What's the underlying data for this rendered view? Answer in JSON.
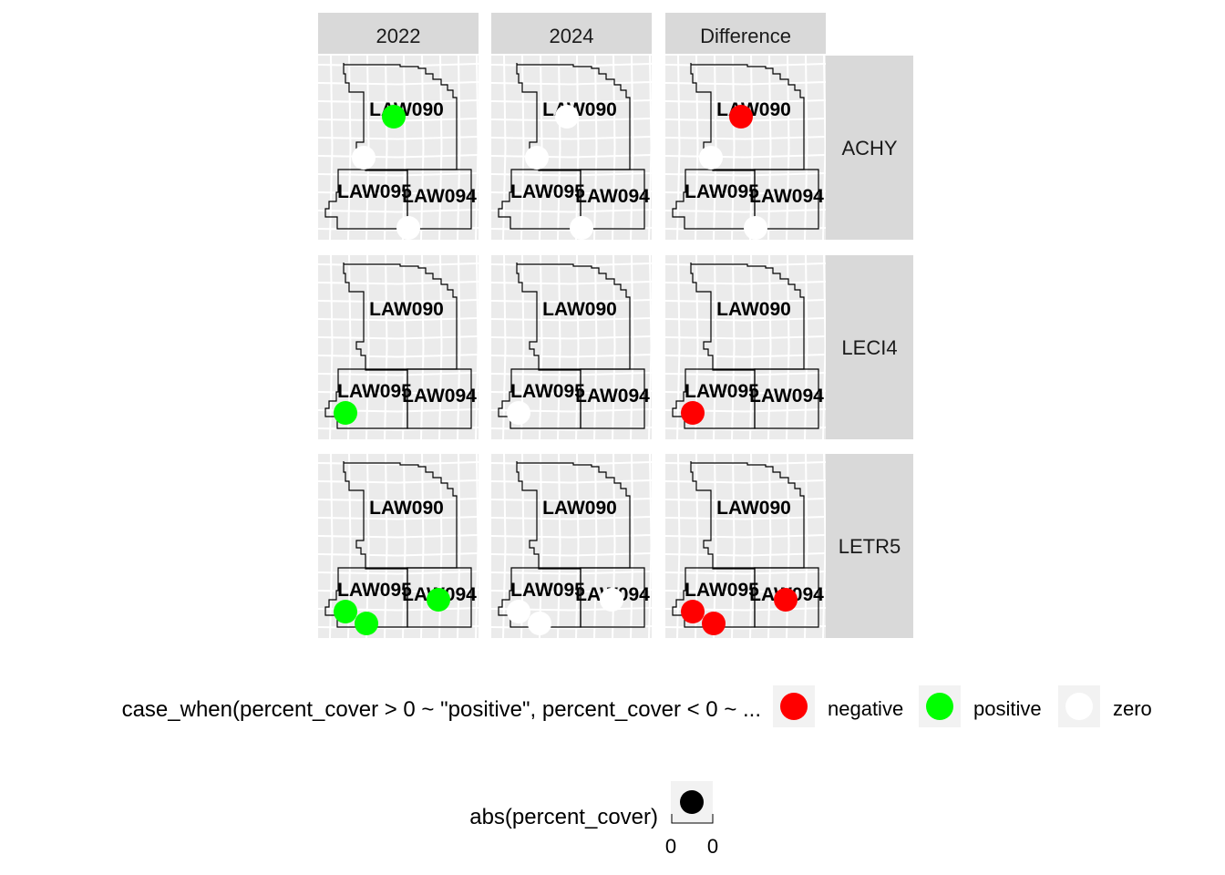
{
  "chart_data": {
    "type": "scatter",
    "subtype": "faceted map (rows = species, columns = period)",
    "columns": [
      "2022",
      "2024",
      "Difference"
    ],
    "rows": [
      "ACHY",
      "LECI4",
      "LETR5"
    ],
    "plot_labels": [
      "LAW090",
      "LAW095",
      "LAW094"
    ],
    "series": [
      {
        "name": "negative",
        "color": "#FF0000"
      },
      {
        "name": "positive",
        "color": "#00FF00"
      },
      {
        "name": "zero",
        "color": "#FFFFFF"
      }
    ],
    "points": [
      {
        "row": "ACHY",
        "col": "2022",
        "site": "LAW090",
        "class": "positive"
      },
      {
        "row": "ACHY",
        "col": "2022",
        "site": "LAW095",
        "class": "zero"
      },
      {
        "row": "ACHY",
        "col": "2022",
        "site": "LAW094",
        "class": "zero"
      },
      {
        "row": "ACHY",
        "col": "2024",
        "site": "LAW090",
        "class": "zero"
      },
      {
        "row": "ACHY",
        "col": "2024",
        "site": "LAW095",
        "class": "zero"
      },
      {
        "row": "ACHY",
        "col": "2024",
        "site": "LAW094",
        "class": "zero"
      },
      {
        "row": "ACHY",
        "col": "Difference",
        "site": "LAW090",
        "class": "negative"
      },
      {
        "row": "ACHY",
        "col": "Difference",
        "site": "LAW095",
        "class": "zero"
      },
      {
        "row": "ACHY",
        "col": "Difference",
        "site": "LAW094",
        "class": "zero"
      },
      {
        "row": "LECI4",
        "col": "2022",
        "site": "LAW095",
        "class": "positive"
      },
      {
        "row": "LECI4",
        "col": "2024",
        "site": "LAW095",
        "class": "zero"
      },
      {
        "row": "LECI4",
        "col": "Difference",
        "site": "LAW095",
        "class": "negative"
      },
      {
        "row": "LETR5",
        "col": "2022",
        "site": "LAW095-a",
        "class": "positive"
      },
      {
        "row": "LETR5",
        "col": "2022",
        "site": "LAW095-b",
        "class": "positive"
      },
      {
        "row": "LETR5",
        "col": "2022",
        "site": "LAW094",
        "class": "positive"
      },
      {
        "row": "LETR5",
        "col": "2024",
        "site": "LAW095-a",
        "class": "zero"
      },
      {
        "row": "LETR5",
        "col": "2024",
        "site": "LAW095-b",
        "class": "zero"
      },
      {
        "row": "LETR5",
        "col": "2024",
        "site": "LAW094",
        "class": "zero"
      },
      {
        "row": "LETR5",
        "col": "Difference",
        "site": "LAW095-a",
        "class": "negative"
      },
      {
        "row": "LETR5",
        "col": "Difference",
        "site": "LAW095-b",
        "class": "negative"
      },
      {
        "row": "LETR5",
        "col": "Difference",
        "site": "LAW094",
        "class": "negative"
      }
    ],
    "grid": true,
    "panel_background": "#EBEBEB",
    "strip_background": "#D9D9D9",
    "legend_position": "bottom",
    "legend_color_title": "case_when(percent_cover > 0 ~ \"positive\", percent_cover < 0 ~ ...",
    "legend_size_title": "abs(percent_cover)",
    "legend_size_labels": [
      "0",
      "0"
    ]
  }
}
